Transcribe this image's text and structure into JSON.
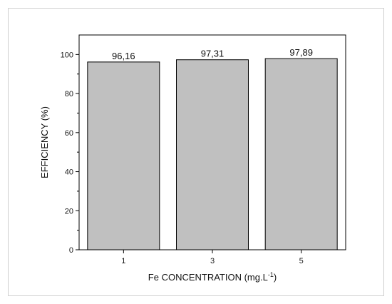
{
  "chart_data": {
    "type": "bar",
    "categories": [
      "1",
      "3",
      "5"
    ],
    "values": [
      96.16,
      97.31,
      97.89
    ],
    "data_labels": [
      "96,16",
      "97,31",
      "97,89"
    ],
    "title": "",
    "xlabel": "Fe CONCENTRATION (mg.L",
    "xlabel_superscript": "-1",
    "xlabel_suffix": ")",
    "ylabel": "EFFICIENCY (%)",
    "ylim": [
      0,
      110
    ],
    "yticks": [
      0,
      20,
      40,
      60,
      80,
      100
    ],
    "grid": false,
    "legend": "none",
    "bar_color": "#c0c0c0",
    "bar_edge_color": "#000000"
  }
}
